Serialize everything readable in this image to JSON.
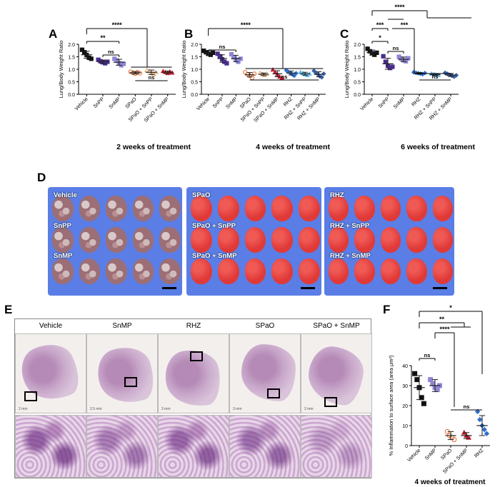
{
  "panels": {
    "A": {
      "label": "A",
      "caption": "2 weeks of treatment",
      "ylabel": "Lung/Body Weight Ratio"
    },
    "B": {
      "label": "B",
      "caption": "4 weeks of treatment",
      "ylabel": "Lung/Body Weight Ratio"
    },
    "C": {
      "label": "C",
      "caption": "6 weeks of treatment",
      "ylabel": "Lung/Body Weight Ratio"
    },
    "D": {
      "label": "D"
    },
    "E": {
      "label": "E"
    },
    "F": {
      "label": "F",
      "caption": "4 weeks of treatment",
      "ylabel": "% Inflammation to surface area (area µm²)"
    }
  },
  "photos": {
    "p1": {
      "labels": [
        "Vehicle",
        "SnPP",
        "SnMP"
      ]
    },
    "p2": {
      "labels": [
        "SPaO",
        "SPaO + SnPP",
        "SPaO + SnMP"
      ]
    },
    "p3": {
      "labels": [
        "RHZ",
        "RHZ + SnPP",
        "RHZ + SnMP"
      ]
    }
  },
  "histology": {
    "titles": [
      "Vehicle",
      "SnMP",
      "RHZ",
      "SPaO",
      "SPaO + SnMP"
    ],
    "scale_labels": [
      "2 mm",
      "2.5 mm",
      "3 mm",
      "3 mm",
      "2 mm"
    ]
  },
  "colors": {
    "vehicle": "#111111",
    "snpp": "#4a2c8f",
    "snmp": "#8f86d6",
    "spao": "#e06b2f",
    "spao_snpp": "#e0a36b",
    "spao_snmp": "#c01a2e",
    "rhz": "#2f6fd0",
    "rhz_snpp": "#62b7e8",
    "rhz_snmp": "#3a5fa8",
    "lung": "#e03a38",
    "tray": "#5a7ee6"
  },
  "chart_data": [
    {
      "type": "scatter",
      "panel": "A",
      "ylabel": "Lung/Body Weight Ratio",
      "xlabel": "2 weeks of treatment",
      "ylim": [
        0,
        2.0
      ],
      "yticks": [
        0.0,
        0.5,
        1.0,
        1.5,
        2.0
      ],
      "categories": [
        "Vehicle",
        "SnPP",
        "SnMP",
        "SPaO",
        "SPaO + SnPP",
        "SPaO + SnMP"
      ],
      "series": [
        {
          "category": "Vehicle",
          "mean": 1.58,
          "sd": 0.14,
          "points": [
            1.78,
            1.68,
            1.57,
            1.46,
            1.42
          ]
        },
        {
          "category": "SnPP",
          "mean": 1.3,
          "sd": 0.07,
          "points": [
            1.38,
            1.32,
            1.28,
            1.24,
            1.3
          ]
        },
        {
          "category": "SnMP",
          "mean": 1.28,
          "sd": 0.12,
          "points": [
            1.42,
            1.35,
            1.25,
            1.16,
            1.22
          ]
        },
        {
          "category": "SPaO",
          "mean": 0.86,
          "sd": 0.05,
          "points": [
            0.9,
            0.86,
            0.82,
            0.88,
            0.84
          ]
        },
        {
          "category": "SPaO + SnPP",
          "mean": 0.88,
          "sd": 0.09,
          "points": [
            0.96,
            0.92,
            0.84,
            0.8,
            0.88
          ]
        },
        {
          "category": "SPaO + SnMP",
          "mean": 0.88,
          "sd": 0.05,
          "points": [
            0.92,
            0.88,
            0.84,
            0.9,
            0.86
          ]
        }
      ],
      "annotations": [
        "****",
        "**",
        "ns",
        "ns"
      ]
    },
    {
      "type": "scatter",
      "panel": "B",
      "ylabel": "Lung/Body Weight Ratio",
      "xlabel": "4 weeks of treatment",
      "ylim": [
        0,
        2.0
      ],
      "yticks": [
        0.0,
        0.5,
        1.0,
        1.5,
        2.0
      ],
      "categories": [
        "Vehicle",
        "SnPP",
        "SnMP",
        "SPaO",
        "SPaO + SnPP",
        "SPaO + SnMP",
        "RHZ",
        "RHZ + SnPP",
        "RHZ + SnMP"
      ],
      "series": [
        {
          "category": "Vehicle",
          "mean": 1.65,
          "sd": 0.1,
          "points": [
            1.74,
            1.68,
            1.62,
            1.58,
            1.66
          ]
        },
        {
          "category": "SnPP",
          "mean": 1.43,
          "sd": 0.15,
          "points": [
            1.62,
            1.52,
            1.4,
            1.3,
            1.24
          ]
        },
        {
          "category": "SnMP",
          "mean": 1.43,
          "sd": 0.13,
          "points": [
            1.6,
            1.48,
            1.38,
            1.3,
            1.42
          ]
        },
        {
          "category": "SPaO",
          "mean": 0.78,
          "sd": 0.09,
          "points": [
            0.88,
            0.8,
            0.74,
            0.66,
            0.82
          ]
        },
        {
          "category": "SPaO + SnPP",
          "mean": 0.8,
          "sd": 0.05,
          "points": [
            0.85,
            0.8,
            0.76,
            0.82
          ]
        },
        {
          "category": "SPaO + SnMP",
          "mean": 0.82,
          "sd": 0.12,
          "points": [
            0.98,
            0.88,
            0.8,
            0.7,
            0.66
          ]
        },
        {
          "category": "RHZ",
          "mean": 0.85,
          "sd": 0.08,
          "points": [
            0.96,
            0.9,
            0.86,
            0.8,
            0.74,
            0.84
          ]
        },
        {
          "category": "RHZ + SnPP",
          "mean": 0.82,
          "sd": 0.06,
          "points": [
            0.88,
            0.84,
            0.8,
            0.76,
            0.82
          ]
        },
        {
          "category": "RHZ + SnMP",
          "mean": 0.8,
          "sd": 0.1,
          "points": [
            0.94,
            0.86,
            0.8,
            0.72,
            0.68,
            0.82
          ]
        }
      ],
      "annotations": [
        "****",
        "ns",
        "ns"
      ]
    },
    {
      "type": "scatter",
      "panel": "C",
      "ylabel": "Lung/Body Weight Ratio",
      "xlabel": "6 weeks of treatment",
      "ylim": [
        0,
        2.0
      ],
      "yticks": [
        0.0,
        0.5,
        1.0,
        1.5,
        2.0
      ],
      "categories": [
        "Vehicle",
        "SnPP",
        "SnMP",
        "RHZ",
        "RHZ + SnPP",
        "RHZ + SnMP"
      ],
      "series": [
        {
          "category": "Vehicle",
          "mean": 1.67,
          "sd": 0.1,
          "points": [
            1.82,
            1.72,
            1.64,
            1.58,
            1.66
          ]
        },
        {
          "category": "SnPP",
          "mean": 1.22,
          "sd": 0.22,
          "points": [
            1.52,
            1.3,
            1.14,
            1.05,
            1.1
          ]
        },
        {
          "category": "SnMP",
          "mean": 1.4,
          "sd": 0.09,
          "points": [
            1.5,
            1.42,
            1.36,
            1.32,
            1.44
          ]
        },
        {
          "category": "RHZ",
          "mean": 0.84,
          "sd": 0.03,
          "points": [
            0.88,
            0.86,
            0.84,
            0.82,
            0.8,
            0.85
          ]
        },
        {
          "category": "RHZ + SnPP",
          "mean": 0.79,
          "sd": 0.03,
          "points": [
            0.82,
            0.8,
            0.78,
            0.76
          ]
        },
        {
          "category": "RHZ + SnMP",
          "mean": 0.77,
          "sd": 0.06,
          "points": [
            0.86,
            0.82,
            0.78,
            0.74,
            0.7,
            0.76
          ]
        }
      ],
      "annotations": [
        "****",
        "***",
        "***",
        "*",
        "ns",
        "ns"
      ]
    },
    {
      "type": "scatter",
      "panel": "F",
      "ylabel": "% Inflammation to surface area (area µm²)",
      "xlabel": "4 weeks of treatment",
      "ylim": [
        0,
        40
      ],
      "yticks": [
        0,
        10,
        20,
        30,
        40
      ],
      "categories": [
        "Vehicle",
        "SnMP",
        "SPaO",
        "SPaO + SnMP",
        "RHZ"
      ],
      "series": [
        {
          "category": "Vehicle",
          "mean": 29,
          "sd": 6,
          "points": [
            36,
            33,
            29,
            24,
            21
          ]
        },
        {
          "category": "SnMP",
          "mean": 30,
          "sd": 3,
          "points": [
            33,
            31,
            29,
            28,
            30
          ]
        },
        {
          "category": "SPaO",
          "mean": 5,
          "sd": 2,
          "points": [
            7,
            5,
            4,
            3
          ]
        },
        {
          "category": "SPaO + SnMP",
          "mean": 5,
          "sd": 1.5,
          "points": [
            6.5,
            5,
            4
          ]
        },
        {
          "category": "RHZ",
          "mean": 10,
          "sd": 5,
          "points": [
            17,
            13,
            10,
            8,
            6
          ]
        }
      ],
      "annotations": [
        "*",
        "**",
        "****",
        "ns",
        "ns"
      ]
    }
  ]
}
